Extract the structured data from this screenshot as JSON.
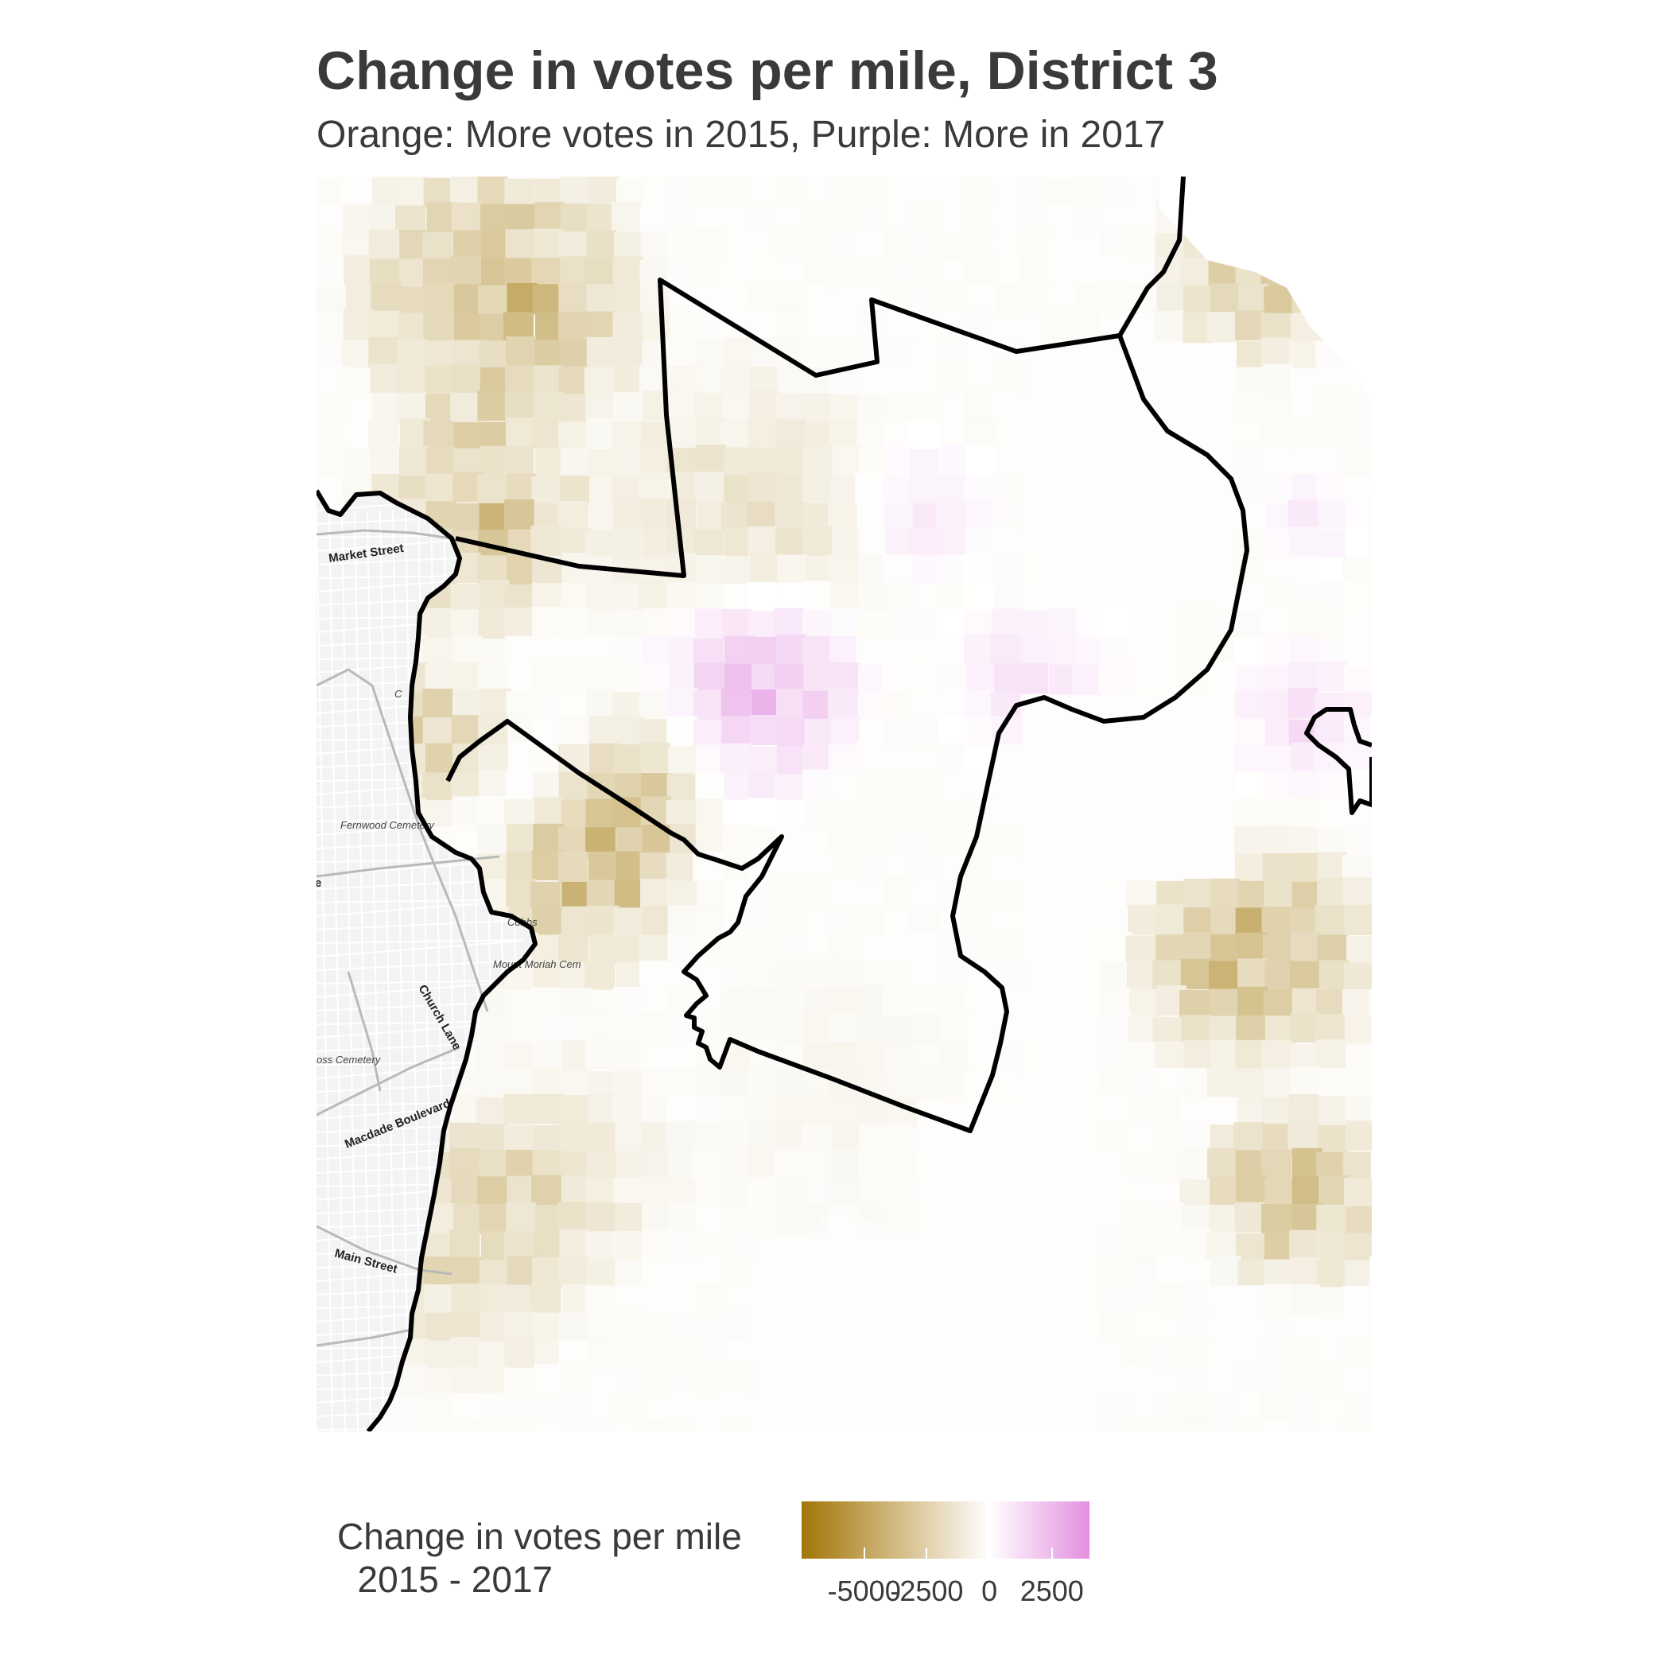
{
  "title": "Change in votes per mile, District 3",
  "subtitle": "Orange: More votes in 2015, Purple: More in 2017",
  "basemap_labels": [
    {
      "text": "Market Street",
      "kind": "street"
    },
    {
      "text": "Fernwood Cemetery",
      "kind": "place"
    },
    {
      "text": "Cobbs",
      "kind": "place"
    },
    {
      "text": "Mount Moriah Cem",
      "kind": "place"
    },
    {
      "text": "Church Lane",
      "kind": "street"
    },
    {
      "text": "oss Cemetery",
      "kind": "place"
    },
    {
      "text": "Macdade Boulevard",
      "kind": "street"
    },
    {
      "text": "Main Street",
      "kind": "street"
    },
    {
      "text": "C",
      "kind": "place"
    },
    {
      "text": "e",
      "kind": "street"
    }
  ],
  "legend": {
    "title": "Change in votes per mile\n  2015 - 2017",
    "min_value": -7500,
    "max_value": 4000,
    "colors": {
      "low": "#a07606",
      "mid": "#ffffff",
      "high": "#e38fe0"
    },
    "ticks": [
      {
        "value": -5000,
        "label": "-5000"
      },
      {
        "value": -2500,
        "label": "-2500"
      },
      {
        "value": 0,
        "label": "0"
      },
      {
        "value": 2500,
        "label": "2500"
      }
    ]
  },
  "chart_data": {
    "type": "heatmap",
    "title": "Change in votes per mile, District 3",
    "subtitle": "Orange: More votes in 2015, Purple: More in 2017",
    "color_scale": {
      "min": -7500,
      "max": 4000,
      "midpoint": 0,
      "low_color": "#a07606",
      "mid_color": "#ffffff",
      "high_color": "#e38fe0"
    }
  }
}
